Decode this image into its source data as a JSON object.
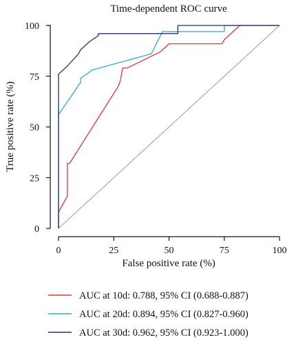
{
  "chart_data": {
    "type": "line",
    "title": "Time-dependent ROC curve",
    "xlabel": "False positive rate (%)",
    "ylabel": "True positive rate (%)",
    "xlim": [
      0,
      100
    ],
    "ylim": [
      0,
      100
    ],
    "xticks": [
      0,
      25,
      50,
      75,
      100
    ],
    "yticks": [
      0,
      25,
      50,
      75,
      100
    ],
    "grid": false,
    "legend_position": "bottom",
    "reference_line": {
      "x": [
        0,
        100
      ],
      "y": [
        0,
        100
      ],
      "color": "#9a9a9a"
    },
    "series": [
      {
        "name": "AUC at 10d: 0.788, 95% CI (0.688-0.887)",
        "color": "#e8303a",
        "x": [
          0,
          0,
          4,
          4,
          5,
          27,
          28,
          29,
          31,
          46,
          50,
          74,
          75,
          82,
          100
        ],
        "y": [
          0,
          8,
          16,
          32,
          32,
          70,
          73,
          79,
          79,
          87,
          91,
          91,
          93,
          100,
          100
        ]
      },
      {
        "name": "AUC at 20d: 0.894, 95% CI (0.827-0.960)",
        "color": "#2fa8dc",
        "x": [
          0,
          0,
          10,
          10,
          14,
          15,
          42,
          47,
          54,
          75,
          75,
          100
        ],
        "y": [
          0,
          56,
          72,
          74,
          77,
          78,
          86,
          97,
          97,
          97,
          100,
          100
        ]
      },
      {
        "name": "AUC at 30d: 0.962, 95% CI (0.923-1.000)",
        "color": "#22306e",
        "x": [
          0,
          0,
          4,
          9,
          10,
          14,
          18,
          18,
          54,
          54,
          100
        ],
        "y": [
          0,
          76,
          80,
          86,
          88,
          92,
          95,
          96,
          96,
          100,
          100
        ]
      }
    ]
  }
}
